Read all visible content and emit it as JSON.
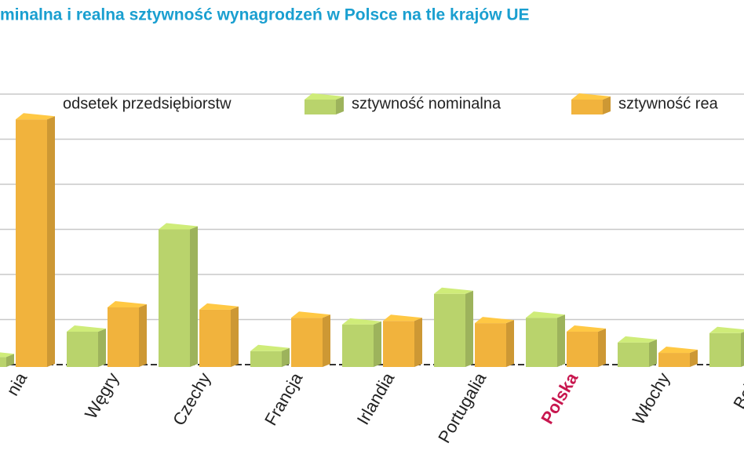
{
  "chart_data": {
    "type": "bar3d",
    "title": "minalna i realna sztywność wynagrodzeń w Polsce na tle krajów UE",
    "legend_title": "odsetek przedsiębiorstw",
    "categories": [
      "nia",
      "Węgry",
      "Czechy",
      "Francja",
      "Irlandia",
      "Portugalia",
      "Polska",
      "Włochy",
      "Belgi"
    ],
    "series": [
      {
        "name": "sztywność nominalna",
        "color": "#b9d36c",
        "values": [
          0.17,
          0.73,
          3.0,
          0.3,
          0.89,
          1.57,
          1.04,
          0.49,
          0.7
        ]
      },
      {
        "name": "sztywność rea",
        "color": "#f1b33d",
        "values": [
          5.44,
          1.27,
          1.22,
          1.04,
          0.97,
          0.92,
          0.73,
          0.26,
          null
        ]
      }
    ],
    "highlight": {
      "index": 6,
      "color": "#c8174f"
    },
    "ylim": [
      0,
      6
    ],
    "yticks": [
      0,
      1,
      2,
      3,
      4,
      5,
      6
    ],
    "grid": true
  }
}
